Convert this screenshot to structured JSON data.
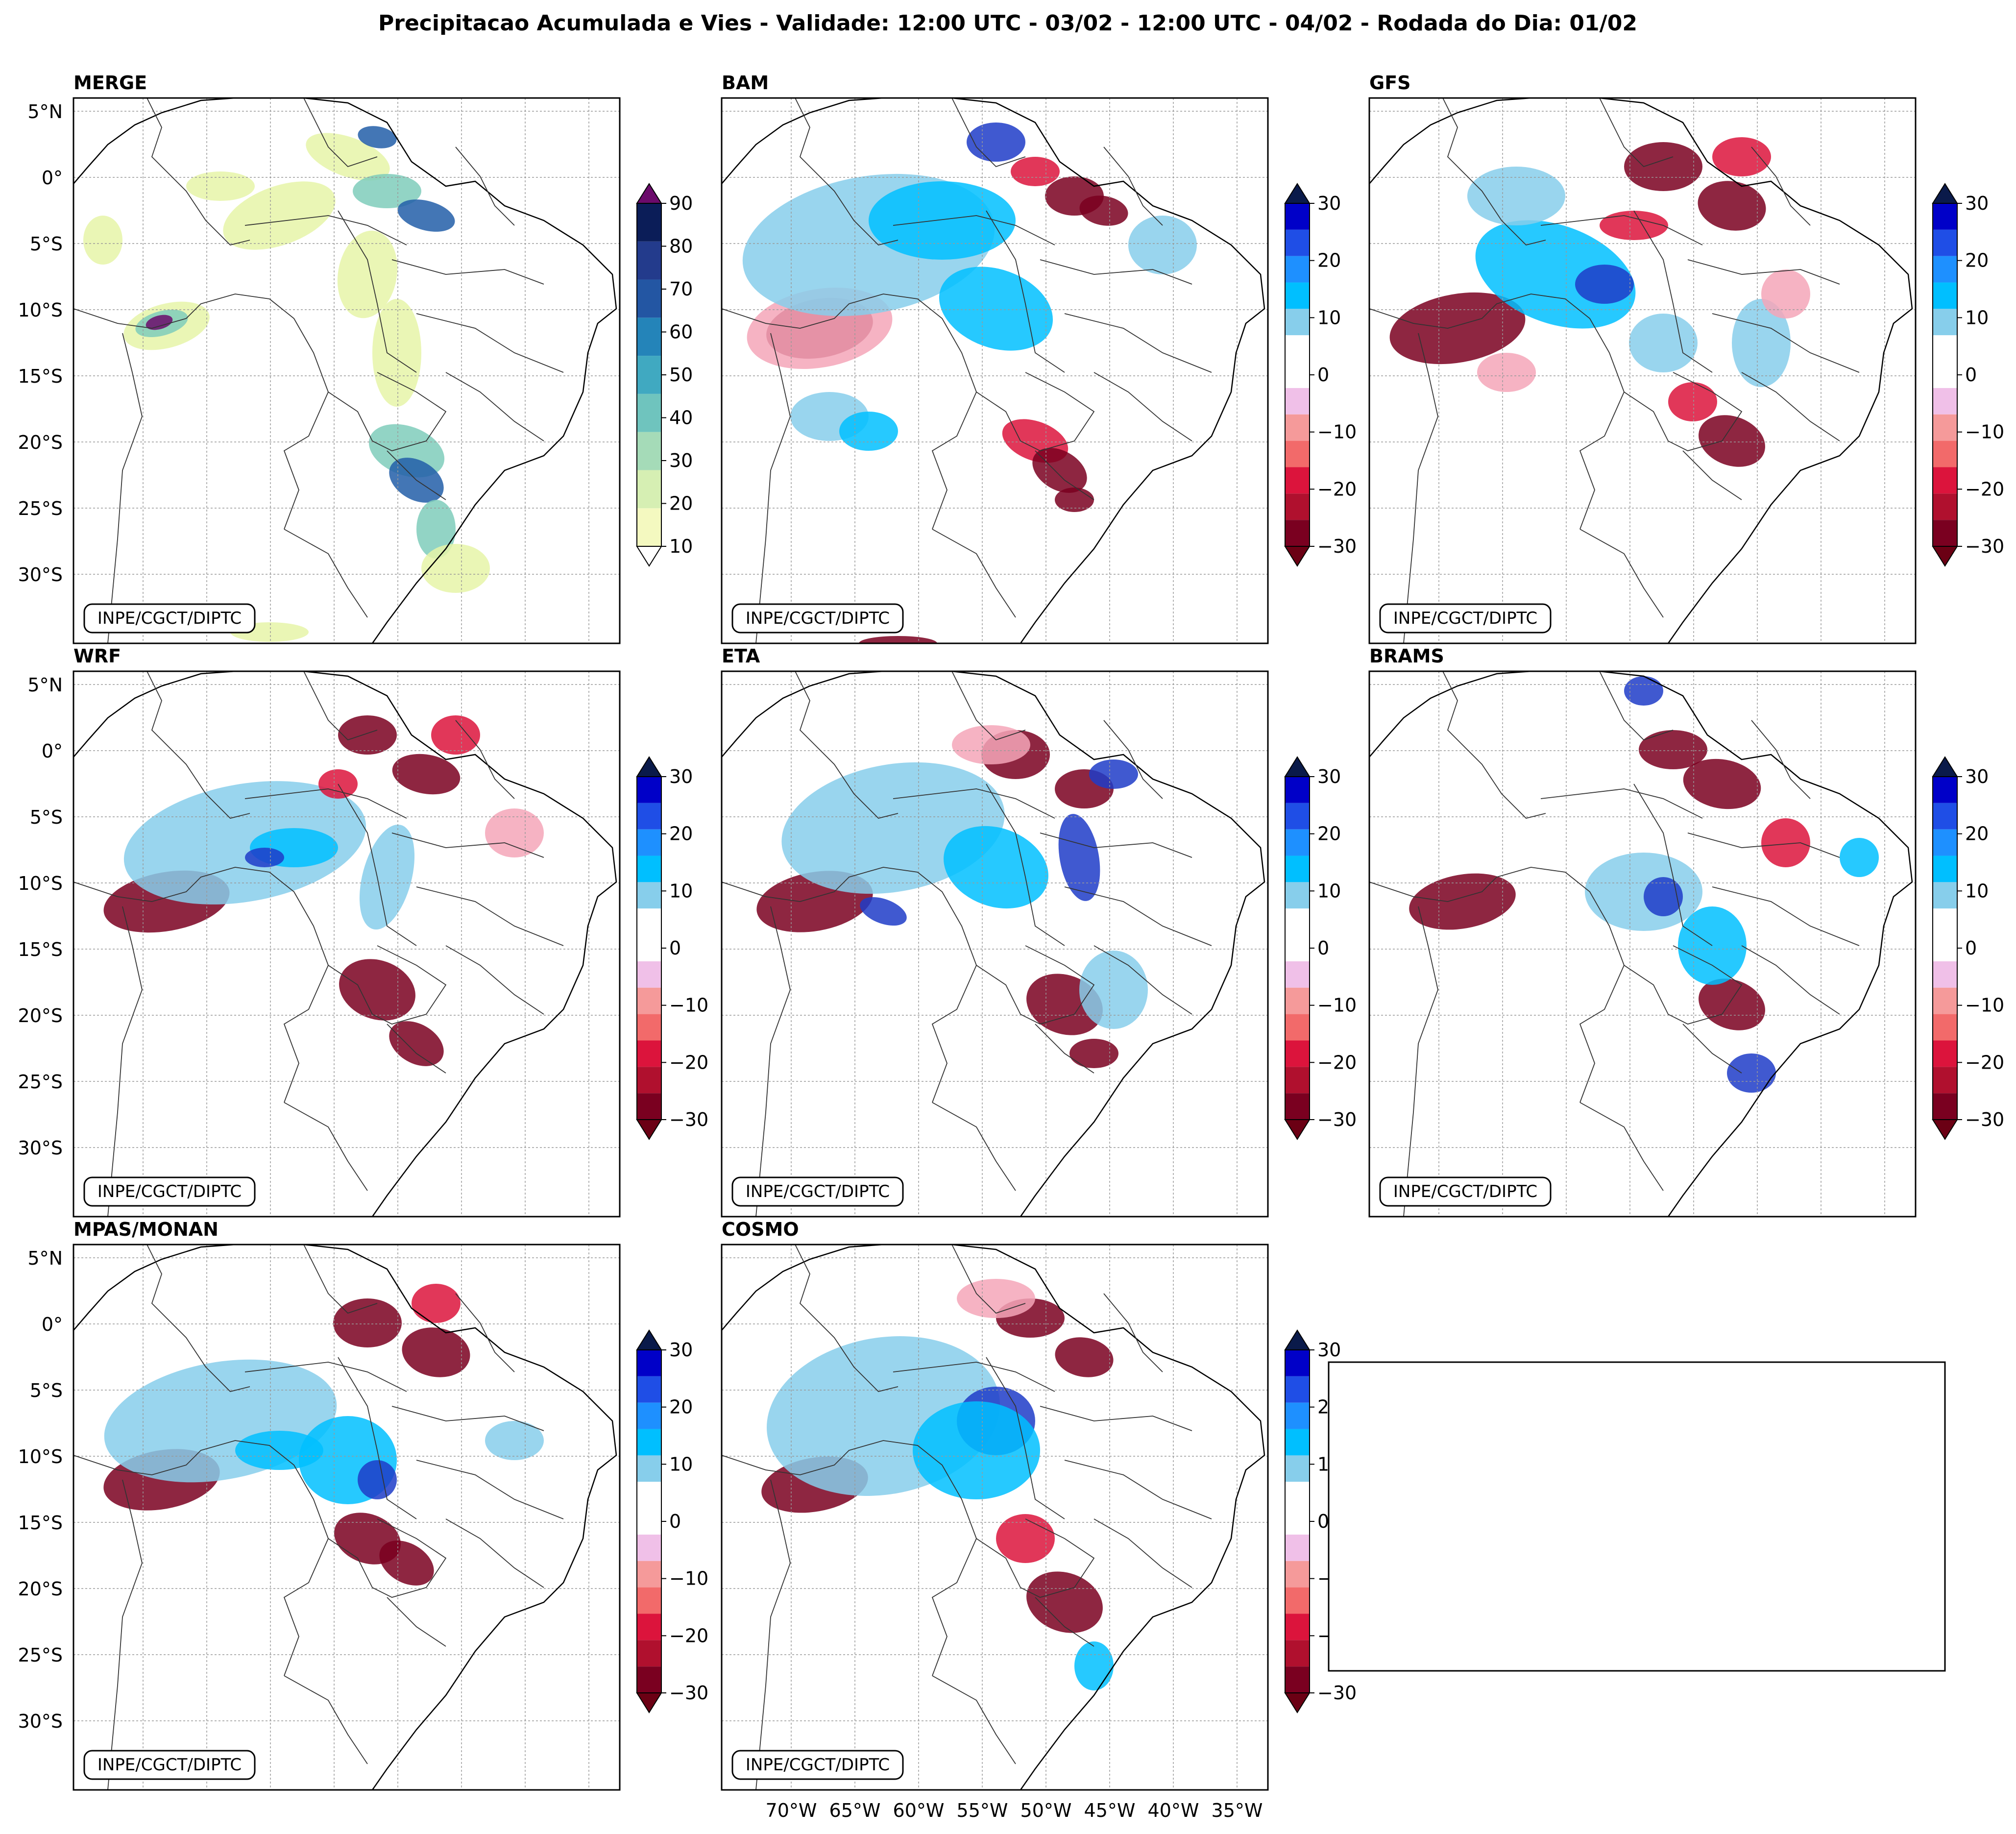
{
  "title": "Precipitacao Acumulada e Vies - Validade: 12:00 UTC - 03/02 - 12:00 UTC - 04/02 - Rodada do Dia: 01/02",
  "credit": "INPE/CGCT/DIPTC",
  "panels": [
    {
      "name": "MERGE",
      "scale": "merge"
    },
    {
      "name": "BAM",
      "scale": "bias"
    },
    {
      "name": "GFS",
      "scale": "bias"
    },
    {
      "name": "WRF",
      "scale": "bias"
    },
    {
      "name": "ETA",
      "scale": "bias"
    },
    {
      "name": "BRAMS",
      "scale": "bias"
    },
    {
      "name": "MPAS/MONAN",
      "scale": "bias"
    },
    {
      "name": "COSMO",
      "scale": "bias"
    }
  ],
  "lat_labels": [
    "5°N",
    "0°",
    "5°S",
    "10°S",
    "15°S",
    "20°S",
    "25°S",
    "30°S"
  ],
  "lon_labels": [
    "70°W",
    "65°W",
    "60°W",
    "55°W",
    "50°W",
    "45°W",
    "40°W",
    "35°W"
  ],
  "merge_scale": {
    "ticks": [
      "10",
      "20",
      "30",
      "40",
      "50",
      "60",
      "70",
      "80",
      "90"
    ],
    "colors": [
      "#f4f9c0",
      "#d6efb3",
      "#a5dbb8",
      "#6fc4be",
      "#40a9c1",
      "#2484b9",
      "#2356a3",
      "#233b8c",
      "#0b1d58"
    ],
    "under": "#ffffff",
    "over": "#6b0a6b"
  },
  "bias_scale": {
    "ticks": [
      "30",
      "20",
      "10",
      "0",
      "−10",
      "−20",
      "−30"
    ],
    "colors": [
      "#0000c8",
      "#1f4ee6",
      "#1e90ff",
      "#00bfff",
      "#87ceeb",
      "#ffffff",
      "#ffffff",
      "#f0c0e8",
      "#f59a9a",
      "#f26a6a",
      "#dc143c",
      "#b0102e",
      "#7a0020"
    ],
    "over": "#0a1a4a",
    "under": "#6b0014"
  },
  "map_colors": {
    "merge_light": "#e6f5a8",
    "merge_mid": "#7fcdbb",
    "merge_dark": "#225ea8",
    "merge_max": "#6b0a6b",
    "blue_light": "#87ceeb",
    "blue_mid": "#00bfff",
    "blue_dark": "#1e3cc8",
    "red_light": "#f4a6b8",
    "red_mid": "#dc143c",
    "red_dark": "#7a0020"
  }
}
